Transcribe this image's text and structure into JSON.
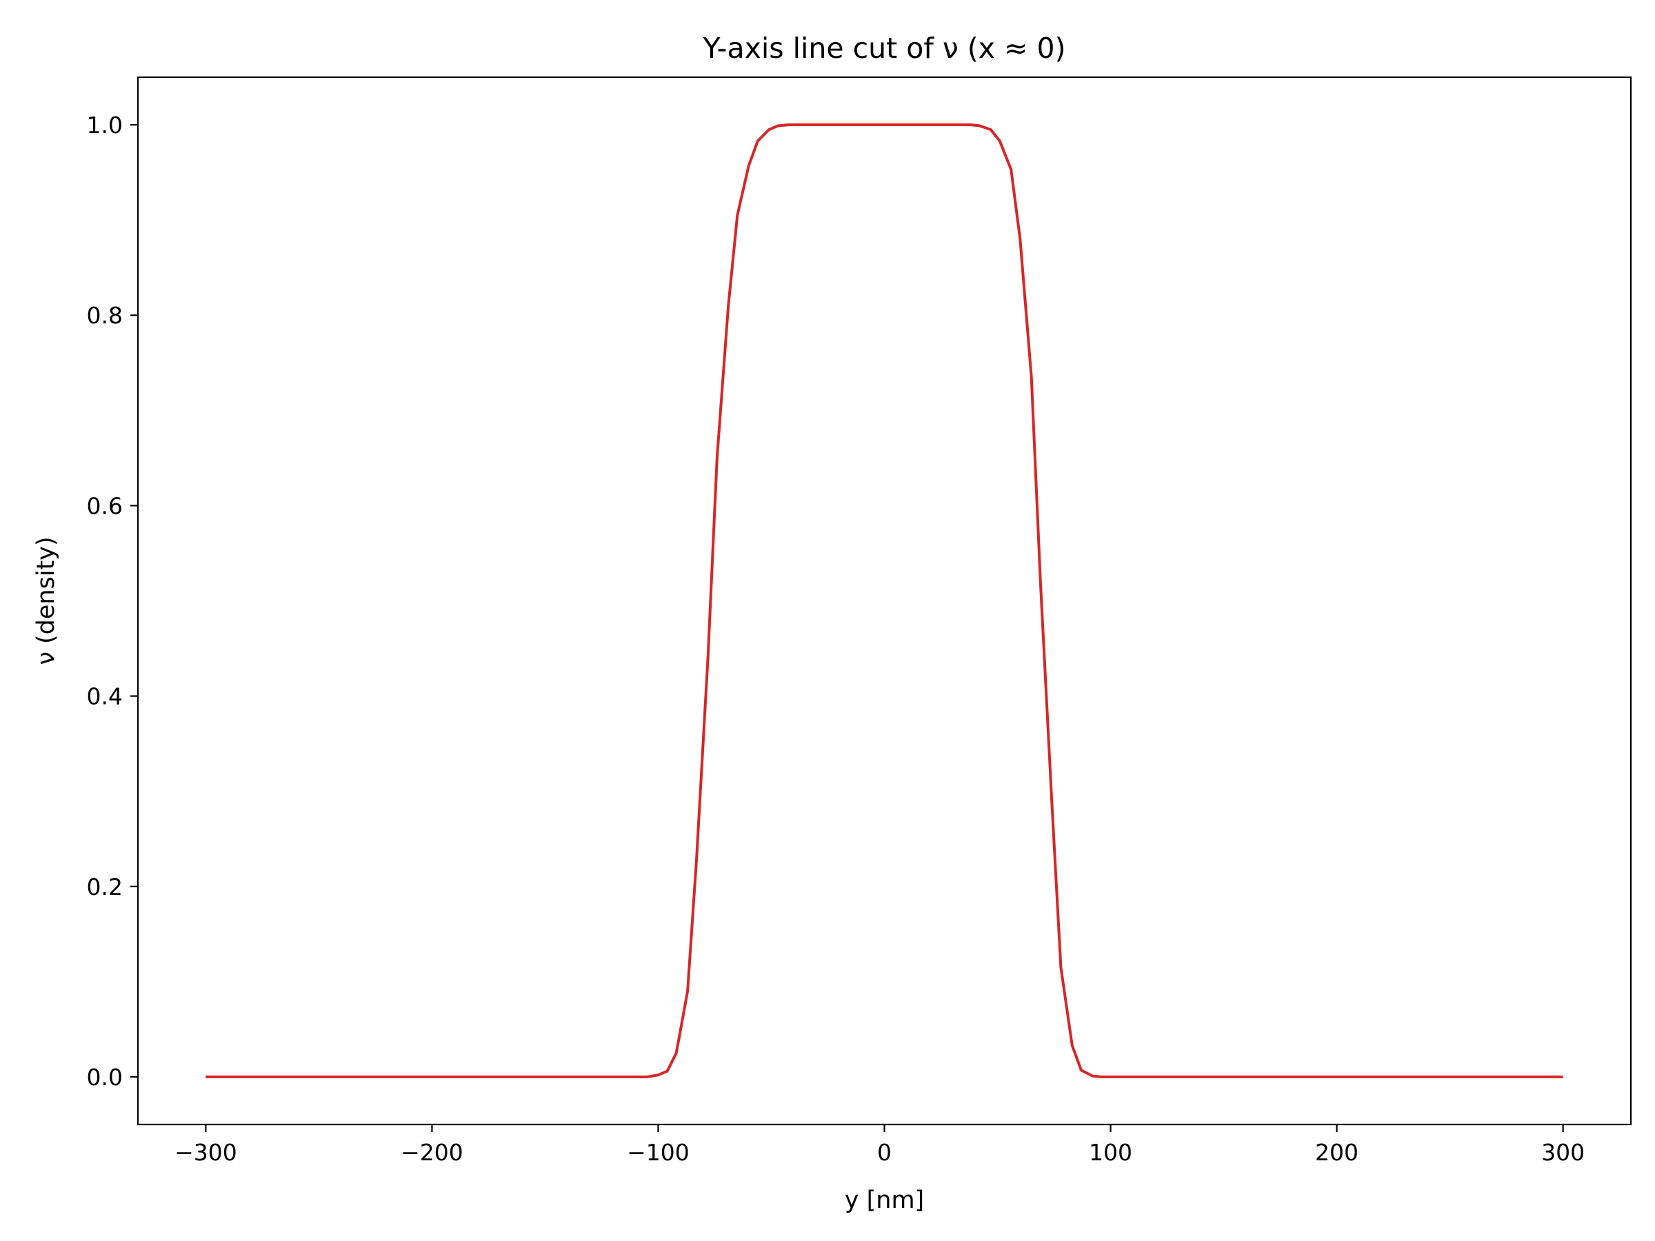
{
  "chart_data": {
    "type": "line",
    "title": "Y-axis line cut of ν (x ≈ 0)",
    "xlabel": "y [nm]",
    "ylabel": "ν (density)",
    "xlim": [
      -330,
      330
    ],
    "ylim": [
      -0.05,
      1.05
    ],
    "xticks": [
      -300,
      -200,
      -100,
      0,
      100,
      200,
      300
    ],
    "xtick_labels": [
      "−300",
      "−200",
      "−100",
      "0",
      "100",
      "200",
      "300"
    ],
    "yticks": [
      0.0,
      0.2,
      0.4,
      0.6,
      0.8,
      1.0
    ],
    "ytick_labels": [
      "0.0",
      "0.2",
      "0.4",
      "0.6",
      "0.8",
      "1.0"
    ],
    "grid": false,
    "legend": "none",
    "series": [
      {
        "color": "#d62728",
        "x": [
          -300,
          -110,
          -105,
          -100,
          -96,
          -92,
          -87,
          -83,
          -78,
          -74,
          -69,
          -65,
          -60,
          -56,
          -51,
          -47,
          -42,
          -38,
          -30,
          0,
          30,
          38,
          42,
          47,
          51,
          56,
          60,
          65,
          69,
          74,
          78,
          83,
          87,
          92,
          96,
          100,
          105,
          110,
          300
        ],
        "y": [
          0.0,
          0.0,
          0.0,
          0.002,
          0.006,
          0.025,
          0.09,
          0.23,
          0.44,
          0.65,
          0.81,
          0.905,
          0.957,
          0.983,
          0.995,
          0.999,
          1.0,
          1.0,
          1.0,
          1.0,
          1.0,
          1.0,
          0.999,
          0.995,
          0.983,
          0.953,
          0.88,
          0.735,
          0.52,
          0.29,
          0.115,
          0.033,
          0.007,
          0.001,
          0.0,
          0.0,
          0.0,
          0.0,
          0.0
        ]
      }
    ]
  }
}
